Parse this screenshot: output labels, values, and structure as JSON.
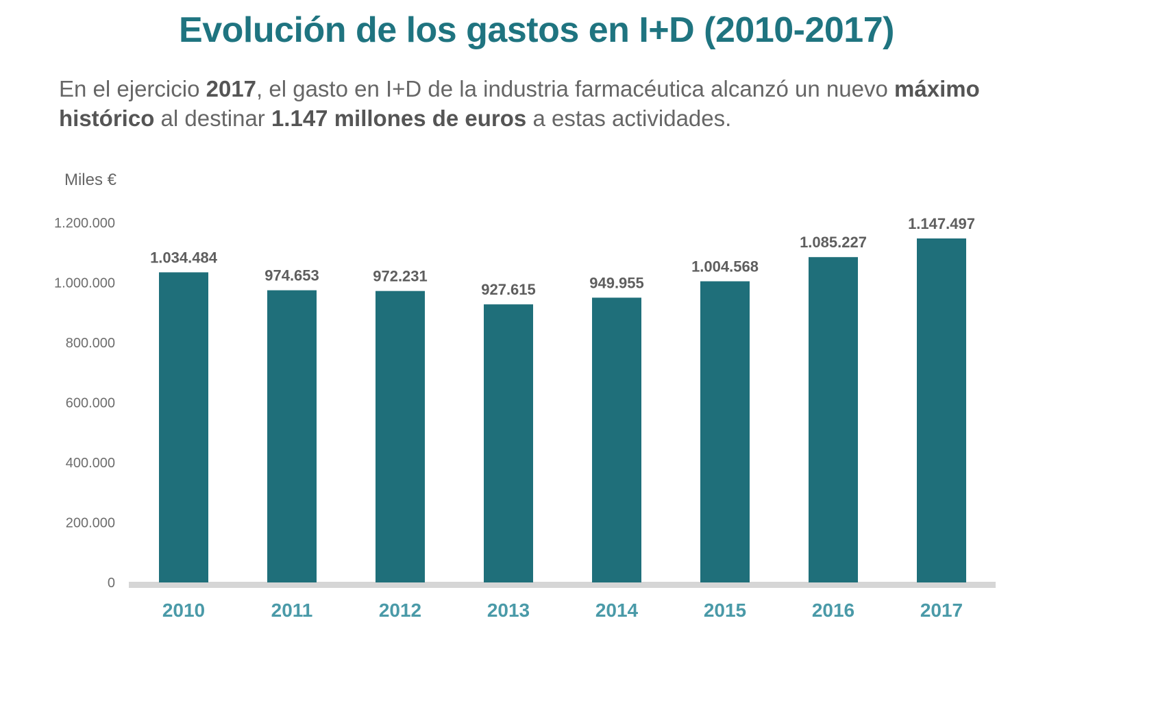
{
  "header": {
    "title": "Evolución de los gastos en I+D (2010-2017)",
    "subtitle_parts": [
      {
        "text": "En el ejercicio ",
        "bold": false
      },
      {
        "text": "2017",
        "bold": true
      },
      {
        "text": ", el gasto en I+D de la industria farmacéutica alcanzó un nuevo ",
        "bold": false
      },
      {
        "text": "máximo histórico",
        "bold": true
      },
      {
        "text": " al destinar ",
        "bold": false
      },
      {
        "text": "1.147 millones de euros",
        "bold": true
      },
      {
        "text": " a estas actividades.",
        "bold": false
      }
    ]
  },
  "colors": {
    "title": "#1f7480",
    "bar": "#1f6f7a",
    "baseline": "#d6d6d6",
    "year_label": "#4a9aa8",
    "value_label": "#5e5e5e",
    "axis_text": "#6d6d6d"
  },
  "chart_data": {
    "type": "bar",
    "title": "Evolución de los gastos en I+D (2010-2017)",
    "xlabel": "",
    "ylabel": "Miles €",
    "categories": [
      "2010",
      "2011",
      "2012",
      "2013",
      "2014",
      "2015",
      "2016",
      "2017"
    ],
    "values": [
      1034484,
      974653,
      972231,
      927615,
      949955,
      1004568,
      1085227,
      1147497
    ],
    "value_labels": [
      "1.034.484",
      "974.653",
      "972.231",
      "927.615",
      "949.955",
      "1.004.568",
      "1.085.227",
      "1.147.497"
    ],
    "ylim": [
      0,
      1200000
    ],
    "yticks": [
      0,
      200000,
      400000,
      600000,
      800000,
      1000000,
      1200000
    ],
    "ytick_labels": [
      "0",
      "200.000",
      "400.000",
      "600.000",
      "800.000",
      "1.000.000",
      "1.200.000"
    ],
    "grid": false,
    "legend": "none"
  }
}
